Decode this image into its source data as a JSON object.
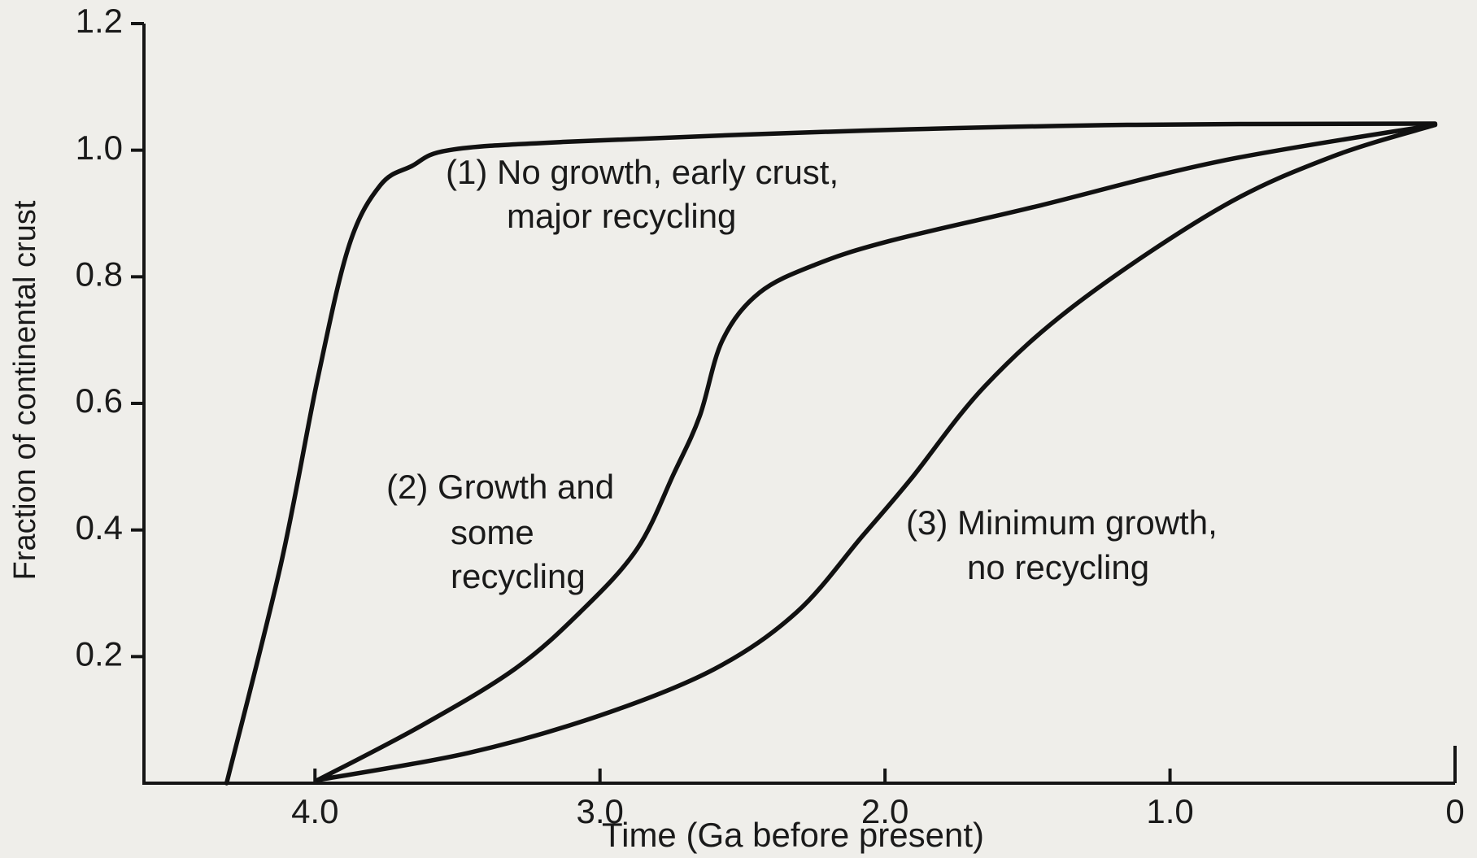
{
  "chart_data": {
    "type": "line",
    "x_label": "Time (Ga before present)",
    "y_label": "Fraction of continental crust",
    "xlim": [
      4.6,
      0
    ],
    "ylim": [
      0,
      1.2
    ],
    "xticks": [
      {
        "value": 4,
        "label": "4.0"
      },
      {
        "value": 3,
        "label": "3.0"
      },
      {
        "value": 2,
        "label": "2.0"
      },
      {
        "value": 1,
        "label": "1.0"
      },
      0
    ],
    "yticks": [
      0.2,
      0.4,
      0.6,
      0.8,
      {
        "value": 1,
        "label": "1.0"
      },
      1.2
    ],
    "series": [
      {
        "color": "#111111",
        "x": [
          4.31,
          4.12,
          3.99,
          3.88,
          3.77,
          3.66,
          3.53,
          3.13,
          2.14,
          1.15,
          0.07
        ],
        "values": [
          0,
          0.345,
          0.64,
          0.85,
          0.945,
          0.975,
          1.0,
          1.013,
          1.03,
          1.04,
          1.042
        ]
      },
      {
        "color": "#111111",
        "x": [
          3.99,
          3.63,
          3.3,
          3.07,
          2.87,
          2.74,
          2.65,
          2.57,
          2.44,
          2.24,
          1.98,
          1.48,
          0.82,
          0.07
        ],
        "values": [
          0.005,
          0.09,
          0.18,
          0.27,
          0.37,
          0.49,
          0.58,
          0.7,
          0.775,
          0.82,
          0.857,
          0.91,
          0.983,
          1.04
        ]
      },
      {
        "color": "#111111",
        "x": [
          3.99,
          3.46,
          3.0,
          2.6,
          2.31,
          2.08,
          1.91,
          1.65,
          1.32,
          0.82,
          0.43,
          0.07
        ],
        "values": [
          0.005,
          0.048,
          0.107,
          0.18,
          0.27,
          0.39,
          0.48,
          0.627,
          0.76,
          0.91,
          0.99,
          1.04
        ]
      }
    ],
    "annotations": [
      {
        "lines": [
          "(1) No growth, early crust,",
          "major recycling"
        ]
      },
      {
        "lines": [
          "(2) Growth and",
          "some",
          "recycling"
        ]
      },
      {
        "lines": [
          "(3) Minimum growth,",
          "no recycling"
        ]
      }
    ]
  }
}
